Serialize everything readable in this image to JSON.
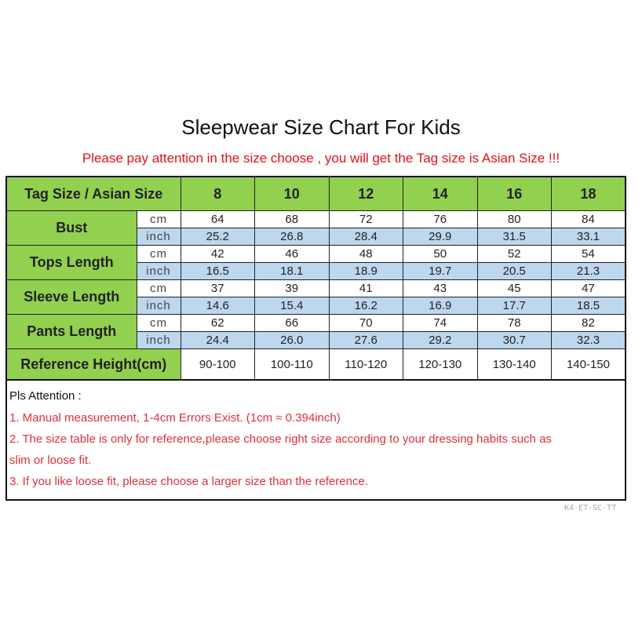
{
  "title": "Sleepwear Size Chart For Kids",
  "subtitle": "Please pay attention in the size choose , you will get the Tag size is Asian Size !!!",
  "colors": {
    "header_green": "#92d050",
    "inch_row_blue": "#bdd7ee",
    "note_red": "#e0303a"
  },
  "table": {
    "header_label": "Tag Size / Asian Size",
    "sizes": [
      "8",
      "10",
      "12",
      "14",
      "16",
      "18"
    ],
    "measurements": [
      {
        "label": "Bust",
        "cm_unit": "cm",
        "inch_unit": "inch",
        "cm": [
          "64",
          "68",
          "72",
          "76",
          "80",
          "84"
        ],
        "inch": [
          "25.2",
          "26.8",
          "28.4",
          "29.9",
          "31.5",
          "33.1"
        ]
      },
      {
        "label": "Tops Length",
        "cm_unit": "cm",
        "inch_unit": "inch",
        "cm": [
          "42",
          "46",
          "48",
          "50",
          "52",
          "54"
        ],
        "inch": [
          "16.5",
          "18.1",
          "18.9",
          "19.7",
          "20.5",
          "21.3"
        ]
      },
      {
        "label": "Sleeve Length",
        "cm_unit": "cm",
        "inch_unit": "inch",
        "cm": [
          "37",
          "39",
          "41",
          "43",
          "45",
          "47"
        ],
        "inch": [
          "14.6",
          "15.4",
          "16.2",
          "16.9",
          "17.7",
          "18.5"
        ]
      },
      {
        "label": "Pants Length",
        "cm_unit": "cm",
        "inch_unit": "inch",
        "cm": [
          "62",
          "66",
          "70",
          "74",
          "78",
          "82"
        ],
        "inch": [
          "24.4",
          "26.0",
          "27.6",
          "29.2",
          "30.7",
          "32.3"
        ]
      }
    ],
    "reference_label": "Reference Height(cm)",
    "reference": [
      "90-100",
      "100-110",
      "110-120",
      "120-130",
      "130-140",
      "140-150"
    ]
  },
  "notes": {
    "heading": "Pls Attention :",
    "lines": [
      "1. Manual measurement, 1-4cm Errors Exist.  (1cm ≈ 0.394inch)",
      "2. The size table is only for reference,please choose right size according to your dressing habits such as",
      "slim or loose fit.",
      "3. If you like loose fit, please choose a larger size than the reference."
    ]
  },
  "code": "K4-ET-SC-TT"
}
